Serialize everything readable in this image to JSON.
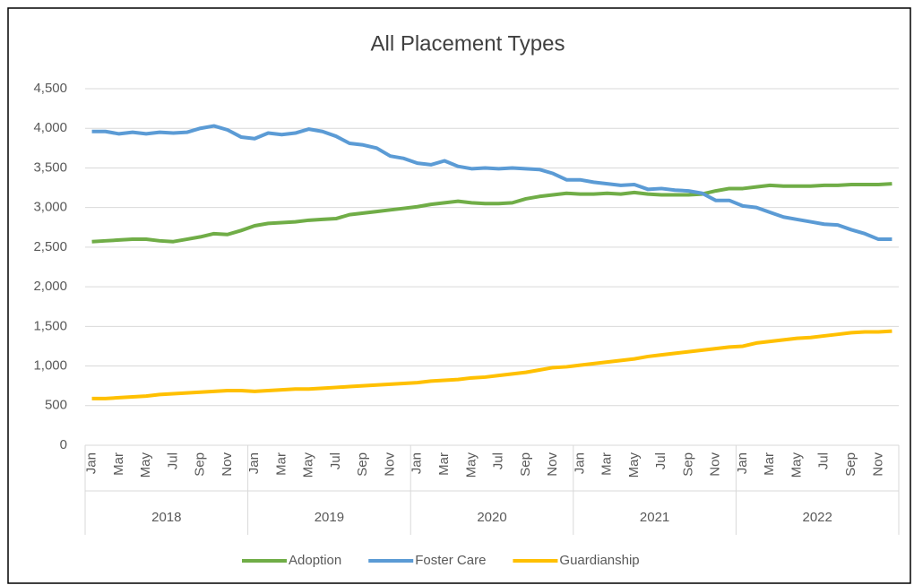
{
  "chart_data": {
    "type": "line",
    "title": "All Placement Types",
    "categories": [
      "Jan",
      null,
      "Mar",
      null,
      "May",
      null,
      "Jul",
      null,
      "Sep",
      null,
      "Nov",
      null,
      "Jan",
      null,
      "Mar",
      null,
      "May",
      null,
      "Jul",
      null,
      "Sep",
      null,
      "Nov",
      null,
      "Jan",
      null,
      "Mar",
      null,
      "May",
      null,
      "Jul",
      null,
      "Sep",
      null,
      "Nov",
      null,
      "Jan",
      null,
      "Mar",
      null,
      "May",
      null,
      "Jul",
      null,
      "Sep",
      null,
      "Nov",
      null,
      "Jan",
      null,
      "Mar",
      null,
      "May",
      null,
      "Jul",
      null,
      "Sep",
      null,
      "Nov",
      null
    ],
    "groups": [
      "2018",
      "2019",
      "2020",
      "2021",
      "2022"
    ],
    "series": [
      {
        "name": "Adoption",
        "color": "#70ad47",
        "values": [
          2570,
          2580,
          2590,
          2600,
          2600,
          2580,
          2570,
          2600,
          2630,
          2670,
          2660,
          2710,
          2770,
          2800,
          2810,
          2820,
          2840,
          2850,
          2860,
          2910,
          2930,
          2950,
          2970,
          2990,
          3010,
          3040,
          3060,
          3080,
          3060,
          3050,
          3050,
          3060,
          3110,
          3140,
          3160,
          3180,
          3170,
          3170,
          3180,
          3170,
          3190,
          3170,
          3160,
          3160,
          3160,
          3170,
          3210,
          3240,
          3240,
          3260,
          3280,
          3270,
          3270,
          3270,
          3280,
          3280,
          3290,
          3290,
          3290,
          3300
        ]
      },
      {
        "name": "Foster Care",
        "color": "#5b9bd5",
        "values": [
          3960,
          3960,
          3930,
          3950,
          3930,
          3950,
          3940,
          3950,
          4000,
          4030,
          3980,
          3890,
          3870,
          3940,
          3920,
          3940,
          3990,
          3960,
          3900,
          3810,
          3790,
          3750,
          3650,
          3620,
          3560,
          3540,
          3590,
          3520,
          3490,
          3500,
          3490,
          3500,
          3490,
          3480,
          3430,
          3350,
          3350,
          3320,
          3300,
          3280,
          3290,
          3230,
          3240,
          3220,
          3210,
          3180,
          3090,
          3090,
          3020,
          3000,
          2940,
          2880,
          2850,
          2820,
          2790,
          2780,
          2720,
          2670,
          2600,
          2600
        ]
      },
      {
        "name": "Guardianship",
        "color": "#ffc000",
        "values": [
          590,
          590,
          600,
          610,
          620,
          640,
          650,
          660,
          670,
          680,
          690,
          690,
          680,
          690,
          700,
          710,
          710,
          720,
          730,
          740,
          750,
          760,
          770,
          780,
          790,
          810,
          820,
          830,
          850,
          860,
          880,
          900,
          920,
          950,
          980,
          990,
          1010,
          1030,
          1050,
          1070,
          1090,
          1120,
          1140,
          1160,
          1180,
          1200,
          1220,
          1240,
          1250,
          1290,
          1310,
          1330,
          1350,
          1360,
          1380,
          1400,
          1420,
          1430,
          1430,
          1440
        ]
      }
    ],
    "ylim": [
      0,
      4500
    ],
    "yticks": [
      0,
      500,
      {
        "value": 1000,
        "label": "1,000"
      },
      {
        "value": 1500,
        "label": "1,500"
      },
      {
        "value": 2000,
        "label": "2,000"
      },
      {
        "value": 2500,
        "label": "2,500"
      },
      {
        "value": 3000,
        "label": "3,000"
      },
      {
        "value": 3500,
        "label": "3,500"
      },
      {
        "value": 4000,
        "label": "4,000"
      },
      {
        "value": 4500,
        "label": "4,500"
      }
    ],
    "grid": true,
    "legend": "bottom"
  }
}
